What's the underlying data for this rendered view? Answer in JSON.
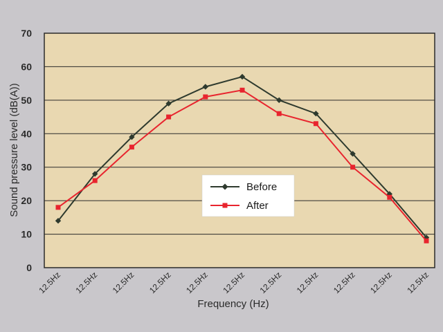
{
  "chart_data": {
    "type": "line",
    "categories": [
      "12.5Hz",
      "12.5Hz",
      "12.5Hz",
      "12.5Hz",
      "12.5Hz",
      "12.5Hz",
      "12.5Hz",
      "12.5Hz",
      "12.5Hz",
      "12.5Hz",
      "12.5Hz"
    ],
    "series": [
      {
        "name": "Before",
        "color": "#2e3a2e",
        "marker": "diamond",
        "values": [
          14,
          28,
          39,
          49,
          54,
          57,
          50,
          46,
          34,
          22,
          9
        ]
      },
      {
        "name": "After",
        "color": "#e8242e",
        "marker": "square",
        "values": [
          18,
          26,
          36,
          45,
          51,
          53,
          46,
          43,
          30,
          21,
          8
        ]
      }
    ],
    "xlabel": "Frequency (Hz)",
    "ylabel": "Sound pressure level (dB(A))",
    "ylim": [
      0,
      70
    ],
    "yticks": [
      0,
      10,
      20,
      30,
      40,
      50,
      60,
      70
    ],
    "grid": true,
    "legend_position": "center-right",
    "plot_background": "#e9d8b1"
  }
}
